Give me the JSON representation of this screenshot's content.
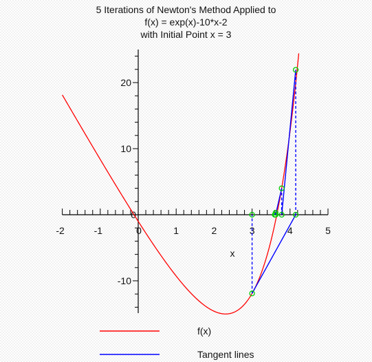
{
  "chart_data": {
    "type": "line",
    "title_lines": [
      "5 Iterations of Newton's Method Applied to",
      "f(x) = exp(x)-10*x-2",
      "with Initial Point x = 3"
    ],
    "xlabel": "x",
    "ylabel": "",
    "xlim": [
      -2,
      5
    ],
    "ylim": [
      -15,
      25
    ],
    "x_ticks": [
      -2,
      -1,
      0,
      1,
      2,
      3,
      4,
      5
    ],
    "x_tick_labels": [
      "-2",
      "-1",
      "0",
      "1",
      "2",
      "3",
      "4",
      "5"
    ],
    "y_ticks": [
      -10,
      10,
      20
    ],
    "y_tick_labels": [
      "-10",
      "10",
      "20"
    ],
    "grid": false,
    "legend_position": "bottom",
    "function": "exp(x)-10*x-2",
    "series": [
      {
        "name": "f(x)",
        "color": "#ff0000",
        "style": "solid"
      },
      {
        "name": "Tangent lines",
        "color": "#0000ff",
        "style": "solid"
      }
    ],
    "newton_points": [
      {
        "x": 3.0,
        "y": -11.91
      },
      {
        "x": 4.15,
        "y": 21.93
      },
      {
        "x": 3.78,
        "y": 4.0
      },
      {
        "x": 3.62,
        "y": 0.3
      },
      {
        "x": 3.6,
        "y": 0.0
      }
    ],
    "tangent_segments": [
      {
        "x1": 3.0,
        "y1": -11.91,
        "x2": 4.15,
        "y2": 0
      },
      {
        "x1": 4.15,
        "y1": 0,
        "x2": 4.15,
        "y2": 21.93
      },
      {
        "x1": 4.15,
        "y1": 21.93,
        "x2": 3.78,
        "y2": 0
      },
      {
        "x1": 3.78,
        "y1": 0,
        "x2": 3.78,
        "y2": 4.0
      },
      {
        "x1": 3.78,
        "y1": 4.0,
        "x2": 3.62,
        "y2": 0
      },
      {
        "x1": 3.62,
        "y1": 0,
        "x2": 3.62,
        "y2": 0.3
      },
      {
        "x1": 3.62,
        "y1": 0.3,
        "x2": 3.6,
        "y2": 0
      },
      {
        "x1": 3.0,
        "y1": -11.91,
        "x2": 3.0,
        "y2": 0
      }
    ]
  },
  "colors": {
    "curve": "#ff0000",
    "tangent": "#0000ff",
    "marker": "#00cc00",
    "axis": "#000000"
  }
}
